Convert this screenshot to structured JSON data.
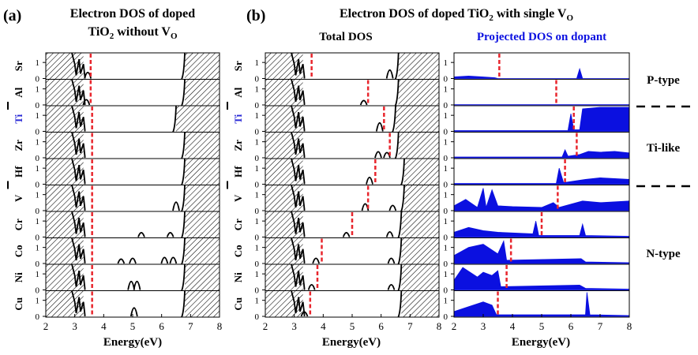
{
  "panel_a": {
    "letter": "(a)",
    "title_line1": "Electron DOS of doped",
    "title_line2_pre": "TiO",
    "title_line2_sub": "2",
    "title_line2_mid": " without V",
    "title_line2_sub2": "O"
  },
  "panel_b": {
    "letter": "(b)",
    "title_pre": "Electron DOS of doped TiO",
    "title_sub": "2",
    "title_mid": " with single V",
    "title_sub2": "O",
    "subtitle_total": "Total DOS",
    "subtitle_projected": "Projected DOS on dopant"
  },
  "side_labels": [
    "P-type",
    "Ti-like",
    "N-type"
  ],
  "xlabel": "Energy(eV)",
  "colors": {
    "black": "#000000",
    "red_dash": "#e8262d",
    "blue": "#0b10e0",
    "ti_label": "#2a2ad6"
  },
  "chart_data": [
    {
      "type": "area",
      "panel": "a",
      "title": "Electron DOS of doped TiO2 without VO",
      "xlabel": "Energy(eV)",
      "xlim": [
        2,
        8
      ],
      "xticks": [
        2,
        3,
        4,
        5,
        6,
        7,
        8
      ],
      "ylim": [
        0,
        1.5
      ],
      "yticks": [
        0,
        1
      ],
      "rows": [
        {
          "dopant": "Sr",
          "vb_edge": 3.3,
          "cb_edge": 6.8,
          "fermi": 3.55,
          "peaks": [
            [
              3.45,
              0.35
            ]
          ]
        },
        {
          "dopant": "Al",
          "vb_edge": 3.3,
          "cb_edge": 6.8,
          "fermi": 3.55,
          "peaks": [
            [
              3.4,
              0.3
            ]
          ]
        },
        {
          "dopant": "Ti",
          "vb_edge": 3.3,
          "cb_edge": 6.5,
          "fermi": 3.6,
          "peaks": []
        },
        {
          "dopant": "Zr",
          "vb_edge": 3.3,
          "cb_edge": 6.8,
          "fermi": 3.6,
          "peaks": []
        },
        {
          "dopant": "Hf",
          "vb_edge": 3.3,
          "cb_edge": 6.8,
          "fermi": 3.6,
          "peaks": []
        },
        {
          "dopant": "V",
          "vb_edge": 3.3,
          "cb_edge": 6.8,
          "fermi": 3.6,
          "peaks": [
            [
              6.5,
              0.5
            ]
          ]
        },
        {
          "dopant": "Cr",
          "vb_edge": 3.3,
          "cb_edge": 6.8,
          "fermi": 3.6,
          "peaks": [
            [
              5.3,
              0.25
            ],
            [
              6.3,
              0.25
            ]
          ]
        },
        {
          "dopant": "Co",
          "vb_edge": 3.3,
          "cb_edge": 6.8,
          "fermi": 3.6,
          "peaks": [
            [
              4.6,
              0.25
            ],
            [
              5.0,
              0.3
            ],
            [
              6.1,
              0.35
            ],
            [
              6.4,
              0.35
            ]
          ]
        },
        {
          "dopant": "Ni",
          "vb_edge": 3.3,
          "cb_edge": 6.8,
          "fermi": 3.6,
          "peaks": [
            [
              4.95,
              0.5
            ],
            [
              5.15,
              0.5
            ]
          ]
        },
        {
          "dopant": "Cu",
          "vb_edge": 3.3,
          "cb_edge": 6.8,
          "fermi": 3.6,
          "peaks": [
            [
              5.05,
              0.5
            ]
          ]
        }
      ]
    },
    {
      "type": "area",
      "panel": "b-total",
      "title": "Total DOS",
      "xlabel": "Energy(eV)",
      "xlim": [
        2,
        8
      ],
      "xticks": [
        2,
        3,
        4,
        5,
        6,
        7,
        8
      ],
      "ylim": [
        0,
        1.5
      ],
      "yticks": [
        0,
        1
      ],
      "rows": [
        {
          "dopant": "Sr",
          "vb_edge": 3.3,
          "cb_edge": 6.6,
          "fermi": 3.6,
          "peaks": [
            [
              6.3,
              0.5
            ]
          ]
        },
        {
          "dopant": "Al",
          "vb_edge": 3.3,
          "cb_edge": 6.6,
          "fermi": 5.55,
          "peaks": [
            [
              5.4,
              0.25
            ]
          ]
        },
        {
          "dopant": "Ti",
          "vb_edge": 3.3,
          "cb_edge": 6.5,
          "fermi": 6.1,
          "peaks": [
            [
              5.95,
              0.5
            ]
          ]
        },
        {
          "dopant": "Zr",
          "vb_edge": 3.3,
          "cb_edge": 6.6,
          "fermi": 6.3,
          "peaks": [
            [
              5.9,
              0.35
            ],
            [
              6.2,
              0.3
            ]
          ]
        },
        {
          "dopant": "Hf",
          "vb_edge": 3.3,
          "cb_edge": 6.8,
          "fermi": 5.8,
          "peaks": [
            [
              5.6,
              0.4
            ]
          ]
        },
        {
          "dopant": "V",
          "vb_edge": 3.3,
          "cb_edge": 6.8,
          "fermi": 5.55,
          "peaks": [
            [
              5.45,
              0.4
            ],
            [
              6.4,
              0.3
            ]
          ]
        },
        {
          "dopant": "Cr",
          "vb_edge": 3.3,
          "cb_edge": 6.7,
          "fermi": 5.0,
          "peaks": [
            [
              4.8,
              0.25
            ],
            [
              6.3,
              0.3
            ]
          ]
        },
        {
          "dopant": "Co",
          "vb_edge": 3.3,
          "cb_edge": 6.7,
          "fermi": 3.95,
          "peaks": [
            [
              3.75,
              0.3
            ],
            [
              6.35,
              0.3
            ]
          ]
        },
        {
          "dopant": "Ni",
          "vb_edge": 3.3,
          "cb_edge": 6.7,
          "fermi": 3.8,
          "peaks": [
            [
              3.6,
              0.3
            ],
            [
              6.35,
              0.3
            ]
          ]
        },
        {
          "dopant": "Cu",
          "vb_edge": 3.3,
          "cb_edge": 6.7,
          "fermi": 3.55,
          "peaks": [
            [
              3.35,
              0.25
            ]
          ]
        }
      ]
    },
    {
      "type": "area",
      "panel": "b-projected",
      "title": "Projected DOS on dopant",
      "xlabel": "Energy(eV)",
      "xlim": [
        2,
        8
      ],
      "xticks": [
        2,
        3,
        4,
        5,
        6,
        7,
        8
      ],
      "ylim": [
        0,
        1.5
      ],
      "yticks": [
        0,
        1
      ],
      "rows": [
        {
          "dopant": "Sr",
          "fermi": 3.55,
          "series": [
            [
              2.0,
              0.1
            ],
            [
              2.5,
              0.15
            ],
            [
              3.0,
              0.1
            ],
            [
              3.4,
              0.05
            ],
            [
              3.5,
              0.0
            ],
            [
              6.2,
              0.0
            ],
            [
              6.3,
              0.6
            ],
            [
              6.4,
              0.0
            ],
            [
              8.0,
              0.0
            ]
          ]
        },
        {
          "dopant": "Al",
          "fermi": 5.5,
          "series": [
            [
              2.0,
              0.02
            ],
            [
              8.0,
              0.02
            ]
          ]
        },
        {
          "dopant": "Ti",
          "fermi": 6.1,
          "series": [
            [
              2.0,
              0.05
            ],
            [
              5.9,
              0.05
            ],
            [
              6.0,
              1.1
            ],
            [
              6.1,
              0.1
            ],
            [
              6.3,
              0.1
            ],
            [
              6.4,
              1.4
            ],
            [
              7.0,
              1.5
            ],
            [
              8.0,
              1.5
            ]
          ]
        },
        {
          "dopant": "Zr",
          "fermi": 6.2,
          "series": [
            [
              2.0,
              0.05
            ],
            [
              5.7,
              0.05
            ],
            [
              5.8,
              0.5
            ],
            [
              5.9,
              0.1
            ],
            [
              6.3,
              0.2
            ],
            [
              6.6,
              0.4
            ],
            [
              7.0,
              0.35
            ],
            [
              7.5,
              0.4
            ],
            [
              8.0,
              0.3
            ]
          ]
        },
        {
          "dopant": "Hf",
          "fermi": 5.8,
          "series": [
            [
              2.0,
              0.05
            ],
            [
              5.5,
              0.05
            ],
            [
              5.6,
              1.0
            ],
            [
              5.75,
              0.1
            ],
            [
              6.5,
              0.3
            ],
            [
              7.0,
              0.4
            ],
            [
              7.5,
              0.35
            ],
            [
              8.0,
              0.3
            ]
          ]
        },
        {
          "dopant": "V",
          "fermi": 5.55,
          "series": [
            [
              2.0,
              0.3
            ],
            [
              2.4,
              0.7
            ],
            [
              2.8,
              0.2
            ],
            [
              3.0,
              1.4
            ],
            [
              3.1,
              0.2
            ],
            [
              3.3,
              1.3
            ],
            [
              3.5,
              0.3
            ],
            [
              4.0,
              0.25
            ],
            [
              5.0,
              0.2
            ],
            [
              5.4,
              0.5
            ],
            [
              5.6,
              0.2
            ],
            [
              6.4,
              0.6
            ],
            [
              7.0,
              0.5
            ],
            [
              8.0,
              0.6
            ]
          ]
        },
        {
          "dopant": "Cr",
          "fermi": 5.0,
          "series": [
            [
              2.0,
              0.3
            ],
            [
              2.5,
              0.6
            ],
            [
              3.0,
              0.4
            ],
            [
              3.5,
              0.3
            ],
            [
              4.7,
              0.2
            ],
            [
              4.8,
              1.0
            ],
            [
              4.9,
              0.1
            ],
            [
              6.3,
              0.1
            ],
            [
              6.4,
              0.8
            ],
            [
              6.5,
              0.1
            ],
            [
              8.0,
              0.05
            ]
          ]
        },
        {
          "dopant": "Co",
          "fermi": 3.95,
          "series": [
            [
              2.0,
              0.5
            ],
            [
              2.5,
              1.0
            ],
            [
              3.0,
              1.2
            ],
            [
              3.5,
              0.6
            ],
            [
              3.7,
              1.4
            ],
            [
              3.8,
              0.2
            ],
            [
              6.35,
              0.3
            ],
            [
              6.5,
              0.1
            ],
            [
              8.0,
              0.05
            ]
          ]
        },
        {
          "dopant": "Ni",
          "fermi": 3.8,
          "series": [
            [
              2.0,
              0.6
            ],
            [
              2.3,
              1.4
            ],
            [
              2.8,
              0.8
            ],
            [
              3.0,
              1.1
            ],
            [
              3.3,
              0.9
            ],
            [
              3.5,
              1.2
            ],
            [
              3.6,
              0.2
            ],
            [
              6.3,
              0.3
            ],
            [
              6.5,
              0.1
            ],
            [
              8.0,
              0.05
            ]
          ]
        },
        {
          "dopant": "Cu",
          "fermi": 3.5,
          "series": [
            [
              2.0,
              0.3
            ],
            [
              2.5,
              0.6
            ],
            [
              3.0,
              0.9
            ],
            [
              3.3,
              0.7
            ],
            [
              3.45,
              0.1
            ],
            [
              6.5,
              0.1
            ],
            [
              6.55,
              1.5
            ],
            [
              6.65,
              0.1
            ],
            [
              8.0,
              0.05
            ]
          ]
        }
      ]
    }
  ]
}
